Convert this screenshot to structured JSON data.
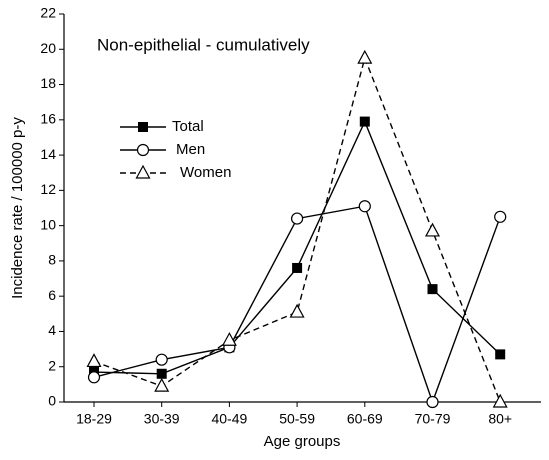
{
  "chart_data": {
    "type": "line",
    "annotation": "Non-epithelial - cumulatively",
    "x_label": "Age groups",
    "y_label": "Incidence rate / 100000 p-y",
    "categories": [
      "18-29",
      "30-39",
      "40-49",
      "50-59",
      "60-69",
      "70-79",
      "80+"
    ],
    "series": [
      {
        "name": "Total",
        "color": "#000000",
        "marker": "square",
        "dashed": false,
        "values": [
          1.7,
          1.6,
          3.1,
          7.6,
          15.9,
          6.4,
          2.7
        ]
      },
      {
        "name": "Men",
        "color": "#000000",
        "marker": "circle",
        "dashed": false,
        "values": [
          1.4,
          2.4,
          3.1,
          10.4,
          11.1,
          0,
          10.5
        ]
      },
      {
        "name": "Women",
        "color": "#000000",
        "marker": "triangle",
        "dashed": true,
        "values": [
          2.3,
          0.9,
          3.5,
          5.1,
          19.5,
          9.7,
          0
        ]
      }
    ],
    "ylim": [
      0,
      22
    ],
    "yticks": [
      0,
      2,
      4,
      6,
      8,
      10,
      12,
      14,
      16,
      18,
      20,
      22
    ]
  }
}
